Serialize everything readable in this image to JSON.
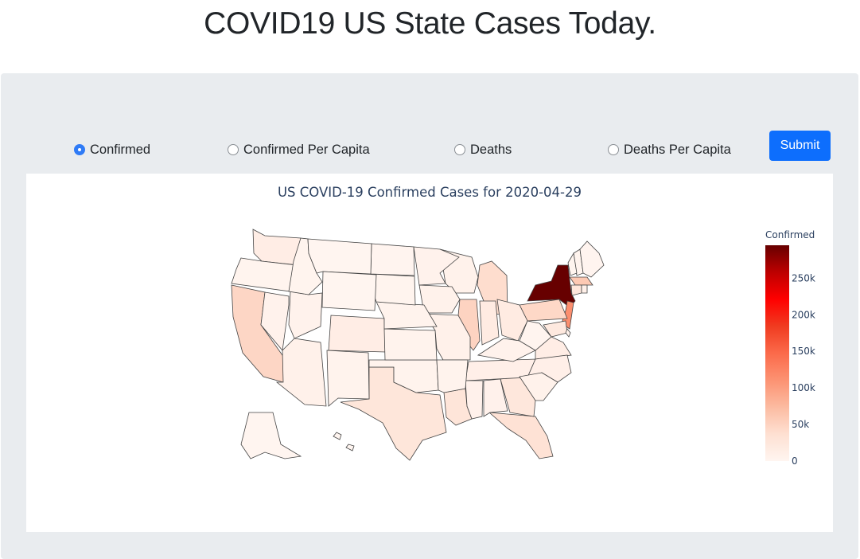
{
  "page_title": "COVID19 US State Cases Today.",
  "radio_options": [
    {
      "label": "Confirmed",
      "selected": true
    },
    {
      "label": "Confirmed Per Capita",
      "selected": false
    },
    {
      "label": "Deaths",
      "selected": false
    },
    {
      "label": "Deaths Per Capita",
      "selected": false
    }
  ],
  "submit_label": "Submit",
  "chart_data": {
    "type": "choropleth",
    "title": "US COVID-19 Confirmed Cases for 2020-04-29",
    "colorbar_title": "Confirmed",
    "colorbar_ticks": [
      "250k",
      "200k",
      "150k",
      "100k",
      "50k",
      "0"
    ],
    "colorbar_tick_values": [
      250000,
      200000,
      150000,
      100000,
      50000,
      0
    ],
    "zmin": 0,
    "zmax": 295000,
    "colorscale": "Reds",
    "states": [
      {
        "state": "NY",
        "value": 295000
      },
      {
        "state": "NJ",
        "value": 114000
      },
      {
        "state": "MA",
        "value": 60000
      },
      {
        "state": "IL",
        "value": 50000
      },
      {
        "state": "CA",
        "value": 47000
      },
      {
        "state": "PA",
        "value": 45000
      },
      {
        "state": "MI",
        "value": 40000
      },
      {
        "state": "FL",
        "value": 33000
      },
      {
        "state": "LA",
        "value": 28000
      },
      {
        "state": "CT",
        "value": 26000
      },
      {
        "state": "TX",
        "value": 27000
      },
      {
        "state": "GA",
        "value": 25000
      },
      {
        "state": "MD",
        "value": 21000
      },
      {
        "state": "OH",
        "value": 17000
      },
      {
        "state": "IN",
        "value": 17000
      },
      {
        "state": "WA",
        "value": 14000
      },
      {
        "state": "CO",
        "value": 14000
      },
      {
        "state": "VA",
        "value": 14000
      },
      {
        "state": "TN",
        "value": 10000
      },
      {
        "state": "NC",
        "value": 10000
      },
      {
        "state": "MO",
        "value": 7000
      },
      {
        "state": "AZ",
        "value": 7000
      },
      {
        "state": "WI",
        "value": 6000
      },
      {
        "state": "AL",
        "value": 6500
      },
      {
        "state": "MS",
        "value": 6500
      },
      {
        "state": "SC",
        "value": 6000
      },
      {
        "state": "RI",
        "value": 8000
      },
      {
        "state": "NV",
        "value": 5000
      },
      {
        "state": "UT",
        "value": 4500
      },
      {
        "state": "KY",
        "value": 4500
      },
      {
        "state": "IA",
        "value": 6000
      },
      {
        "state": "MN",
        "value": 4500
      },
      {
        "state": "DE",
        "value": 4500
      },
      {
        "state": "OK",
        "value": 3500
      },
      {
        "state": "KS",
        "value": 4000
      },
      {
        "state": "NE",
        "value": 3500
      },
      {
        "state": "OR",
        "value": 2400
      },
      {
        "state": "AR",
        "value": 3200
      },
      {
        "state": "NM",
        "value": 3200
      },
      {
        "state": "SD",
        "value": 2300
      },
      {
        "state": "ID",
        "value": 2000
      },
      {
        "state": "NH",
        "value": 2000
      },
      {
        "state": "ND",
        "value": 1000
      },
      {
        "state": "ME",
        "value": 1100
      },
      {
        "state": "WV",
        "value": 1100
      },
      {
        "state": "VT",
        "value": 860
      },
      {
        "state": "HI",
        "value": 610
      },
      {
        "state": "MT",
        "value": 450
      },
      {
        "state": "WY",
        "value": 550
      },
      {
        "state": "AK",
        "value": 350
      }
    ]
  }
}
